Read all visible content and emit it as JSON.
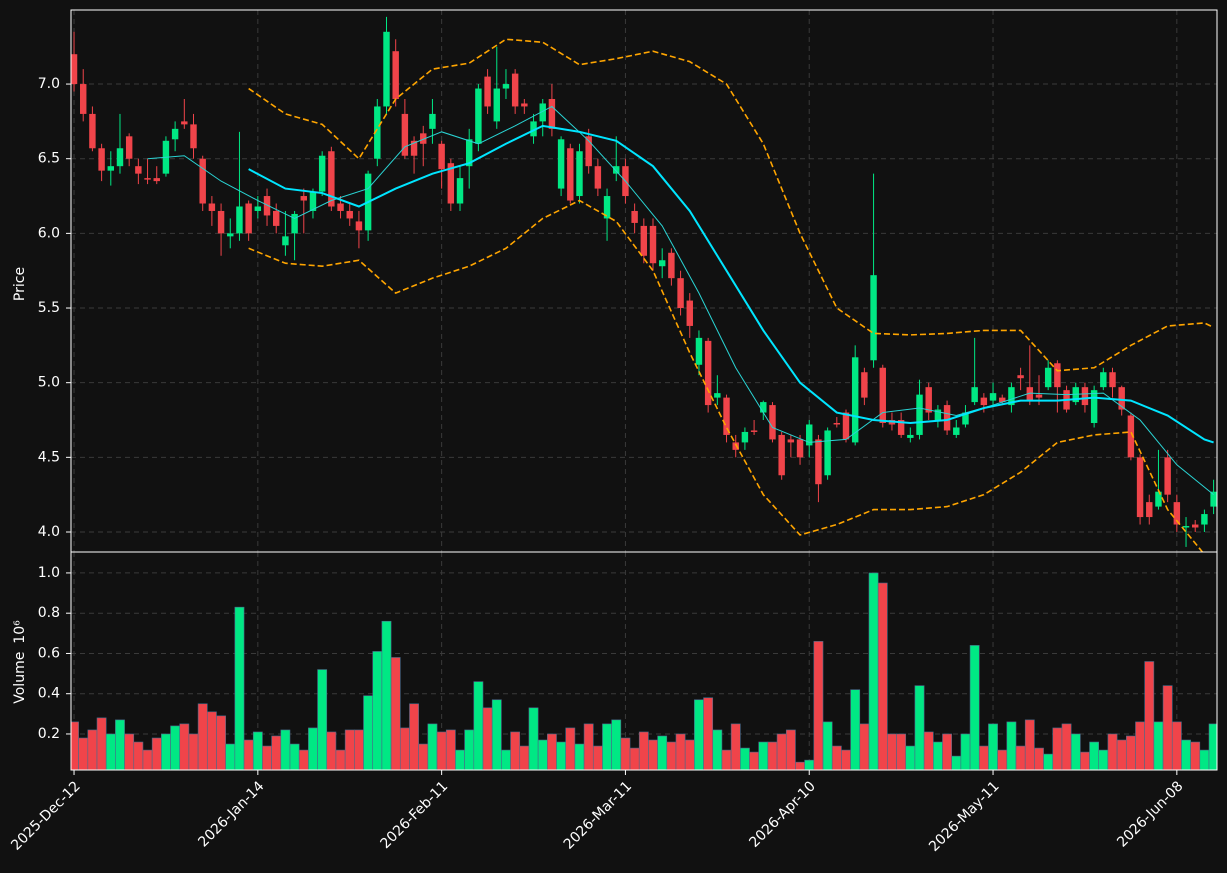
{
  "chart_data": [
    {
      "type": "candlestick",
      "ylabel": "Price",
      "up_color": "#00e884",
      "down_color": "#f0444a",
      "grid": true,
      "xlim": [
        -0.33,
        124.37
      ],
      "ylim": [
        3.866,
        7.496
      ],
      "yticks": [
        {
          "value": 4.0,
          "label": "4.0"
        },
        4.5,
        {
          "value": 5.0,
          "label": "5.0"
        },
        5.5,
        {
          "value": 6.0,
          "label": "6.0"
        },
        6.5,
        {
          "value": 7.0,
          "label": "7.0"
        }
      ],
      "open": [
        7.2,
        7.0,
        6.8,
        6.57,
        6.42,
        6.45,
        6.65,
        6.45,
        6.37,
        6.37,
        6.4,
        6.63,
        6.75,
        6.73,
        6.5,
        6.2,
        6.15,
        5.98,
        6.0,
        6.2,
        6.15,
        6.25,
        6.15,
        5.92,
        6.0,
        6.25,
        6.15,
        6.28,
        6.55,
        6.2,
        6.15,
        6.08,
        6.02,
        6.5,
        6.85,
        7.22,
        6.8,
        6.62,
        6.67,
        6.7,
        6.6,
        6.47,
        6.2,
        6.45,
        6.6,
        7.05,
        6.75,
        6.97,
        7.07,
        6.87,
        6.65,
        6.75,
        6.9,
        6.3,
        6.57,
        6.25,
        6.65,
        6.45,
        6.1,
        6.4,
        6.45,
        6.15,
        6.05,
        6.05,
        5.78,
        5.87,
        5.7,
        5.55,
        5.12,
        5.28,
        4.9,
        4.9,
        4.6,
        4.6,
        4.68,
        4.8,
        4.85,
        4.65,
        4.62,
        4.62,
        4.58,
        4.62,
        4.38,
        4.73,
        4.8,
        4.6,
        5.07,
        5.15,
        5.1,
        4.75,
        4.75,
        4.63,
        4.65,
        4.97,
        4.75,
        4.85,
        4.65,
        4.72,
        4.87,
        4.9,
        4.88,
        4.9,
        4.85,
        5.05,
        4.97,
        4.92,
        4.97,
        5.13,
        4.95,
        4.87,
        4.97,
        4.73,
        4.97,
        5.07,
        4.97,
        4.78,
        4.5,
        4.2,
        4.17,
        4.5,
        4.2,
        4.03,
        4.05,
        4.05,
        4.17
      ],
      "high": [
        7.35,
        7.1,
        6.85,
        6.6,
        6.55,
        6.8,
        6.67,
        6.5,
        6.5,
        6.45,
        6.65,
        6.75,
        6.9,
        6.8,
        6.52,
        6.25,
        6.2,
        6.1,
        6.68,
        6.22,
        6.25,
        6.3,
        6.2,
        6.15,
        6.15,
        6.3,
        6.3,
        6.55,
        6.58,
        6.25,
        6.2,
        6.15,
        6.42,
        6.9,
        7.45,
        7.3,
        6.9,
        6.65,
        6.72,
        6.9,
        6.62,
        6.5,
        6.45,
        6.7,
        7.0,
        7.1,
        7.25,
        7.1,
        7.1,
        6.9,
        6.8,
        6.9,
        7.0,
        6.65,
        6.6,
        6.6,
        6.7,
        6.5,
        6.3,
        6.65,
        6.5,
        6.2,
        6.1,
        6.1,
        5.9,
        5.9,
        5.75,
        5.6,
        5.35,
        5.3,
        5.05,
        4.92,
        4.65,
        4.7,
        4.75,
        4.88,
        4.87,
        4.67,
        4.65,
        4.65,
        4.75,
        4.65,
        4.7,
        4.77,
        4.82,
        5.25,
        5.1,
        6.4,
        5.12,
        4.8,
        4.8,
        4.7,
        5.02,
        5.0,
        4.85,
        4.88,
        4.75,
        4.85,
        5.3,
        4.93,
        5.0,
        4.92,
        5.0,
        5.1,
        5.25,
        5.05,
        5.15,
        5.15,
        4.98,
        5.0,
        5.0,
        4.98,
        5.1,
        5.1,
        4.98,
        4.8,
        4.52,
        4.25,
        4.55,
        4.55,
        4.25,
        4.1,
        4.08,
        4.15,
        4.35
      ],
      "low": [
        6.95,
        6.75,
        6.55,
        6.35,
        6.32,
        6.4,
        6.45,
        6.33,
        6.33,
        6.33,
        6.38,
        6.55,
        6.7,
        6.5,
        6.15,
        6.05,
        5.85,
        5.9,
        5.95,
        5.95,
        6.1,
        6.05,
        6.0,
        5.85,
        5.82,
        6.0,
        6.1,
        6.25,
        6.15,
        6.1,
        6.05,
        5.9,
        5.95,
        6.45,
        6.8,
        6.85,
        6.5,
        6.4,
        6.45,
        6.6,
        6.3,
        6.15,
        6.15,
        6.3,
        6.55,
        6.8,
        6.7,
        6.9,
        6.8,
        6.8,
        6.6,
        6.65,
        6.65,
        6.25,
        6.2,
        6.2,
        6.4,
        6.25,
        5.95,
        6.35,
        6.2,
        6.0,
        5.8,
        5.75,
        5.7,
        5.65,
        5.45,
        5.3,
        5.05,
        4.8,
        4.85,
        4.6,
        4.5,
        4.55,
        4.65,
        4.75,
        4.6,
        4.35,
        4.5,
        4.45,
        4.5,
        4.2,
        4.35,
        4.7,
        4.6,
        4.58,
        4.85,
        5.1,
        4.7,
        4.68,
        4.63,
        4.6,
        4.62,
        4.75,
        4.7,
        4.65,
        4.63,
        4.7,
        4.85,
        4.8,
        4.85,
        4.85,
        4.8,
        4.95,
        4.85,
        4.85,
        4.95,
        4.8,
        4.8,
        4.85,
        4.8,
        4.7,
        4.95,
        4.9,
        4.78,
        4.48,
        4.05,
        4.05,
        4.15,
        4.2,
        4.0,
        3.9,
        4.0,
        4.0,
        4.12
      ],
      "close": [
        7.0,
        6.8,
        6.57,
        6.42,
        6.45,
        6.57,
        6.5,
        6.4,
        6.36,
        6.35,
        6.62,
        6.7,
        6.73,
        6.57,
        6.2,
        6.15,
        6.0,
        6.0,
        6.18,
        6.0,
        6.18,
        6.12,
        6.05,
        5.98,
        6.13,
        6.22,
        6.28,
        6.52,
        6.18,
        6.15,
        6.1,
        6.02,
        6.4,
        6.85,
        7.35,
        6.9,
        6.52,
        6.52,
        6.6,
        6.8,
        6.43,
        6.2,
        6.37,
        6.63,
        6.97,
        6.85,
        6.97,
        7.0,
        6.85,
        6.85,
        6.75,
        6.87,
        6.7,
        6.63,
        6.22,
        6.55,
        6.45,
        6.3,
        6.25,
        6.45,
        6.25,
        6.07,
        5.85,
        5.8,
        5.82,
        5.7,
        5.5,
        5.38,
        5.3,
        4.85,
        4.93,
        4.65,
        4.55,
        4.67,
        4.67,
        4.87,
        4.62,
        4.38,
        4.6,
        4.5,
        4.72,
        4.32,
        4.68,
        4.72,
        4.62,
        5.17,
        4.9,
        5.72,
        4.73,
        4.72,
        4.65,
        4.65,
        4.92,
        4.8,
        4.82,
        4.68,
        4.7,
        4.8,
        4.97,
        4.85,
        4.93,
        4.87,
        4.97,
        5.03,
        4.88,
        4.9,
        5.1,
        4.97,
        4.82,
        4.97,
        4.85,
        4.95,
        5.07,
        4.97,
        4.82,
        4.5,
        4.1,
        4.1,
        4.27,
        4.25,
        4.05,
        4.04,
        4.03,
        4.12,
        4.27
      ],
      "series": [
        {
          "color": "#2ad4d4",
          "linewidth": 1,
          "linestyle": "solid",
          "x": [
            8,
            12,
            16,
            20,
            24,
            28,
            32,
            36,
            40,
            44,
            48,
            52,
            56,
            60,
            64,
            68,
            72,
            76,
            80,
            84,
            88,
            92,
            96,
            100,
            104,
            108,
            112,
            116,
            120,
            124
          ],
          "values": [
            6.5,
            6.52,
            6.35,
            6.22,
            6.1,
            6.22,
            6.3,
            6.58,
            6.68,
            6.6,
            6.72,
            6.85,
            6.62,
            6.35,
            6.05,
            5.6,
            5.1,
            4.7,
            4.6,
            4.62,
            4.8,
            4.83,
            4.78,
            4.85,
            4.93,
            4.92,
            4.93,
            4.75,
            4.45,
            4.25
          ]
        },
        {
          "color": "#00e5ff",
          "linewidth": 2,
          "linestyle": "solid",
          "x": [
            19,
            23,
            27,
            31,
            35,
            39,
            43,
            47,
            51,
            55,
            59,
            63,
            67,
            71,
            75,
            79,
            83,
            87,
            91,
            95,
            99,
            103,
            107,
            111,
            115,
            119,
            123,
            124
          ],
          "values": [
            6.43,
            6.3,
            6.27,
            6.18,
            6.3,
            6.4,
            6.47,
            6.6,
            6.72,
            6.68,
            6.62,
            6.45,
            6.15,
            5.75,
            5.35,
            5.0,
            4.8,
            4.75,
            4.73,
            4.75,
            4.83,
            4.88,
            4.88,
            4.9,
            4.88,
            4.78,
            4.62,
            4.6
          ]
        },
        {
          "color": "#ffa500",
          "linewidth": 1.6,
          "linestyle": "dashed",
          "x": [
            19,
            23,
            27,
            31,
            35,
            39,
            43,
            47,
            51,
            55,
            59,
            63,
            67,
            71,
            75,
            79,
            83,
            87,
            91,
            95,
            99,
            103,
            107,
            111,
            115,
            119,
            123,
            124
          ],
          "values": [
            6.97,
            6.8,
            6.73,
            6.5,
            6.9,
            7.1,
            7.14,
            7.3,
            7.28,
            7.13,
            7.17,
            7.22,
            7.15,
            7.0,
            6.6,
            6.0,
            5.5,
            5.33,
            5.32,
            5.33,
            5.35,
            5.35,
            5.08,
            5.1,
            5.25,
            5.38,
            5.4,
            5.37
          ]
        },
        {
          "color": "#ffa500",
          "linewidth": 1.6,
          "linestyle": "dashed",
          "x": [
            19,
            23,
            27,
            31,
            35,
            39,
            43,
            47,
            51,
            55,
            59,
            63,
            67,
            71,
            75,
            79,
            83,
            87,
            91,
            95,
            99,
            103,
            107,
            111,
            115,
            119,
            123,
            124
          ],
          "values": [
            5.9,
            5.8,
            5.78,
            5.82,
            5.6,
            5.7,
            5.78,
            5.9,
            6.1,
            6.22,
            6.08,
            5.75,
            5.2,
            4.7,
            4.25,
            3.98,
            4.05,
            4.15,
            4.15,
            4.17,
            4.25,
            4.4,
            4.6,
            4.65,
            4.67,
            4.15,
            3.85,
            3.8
          ]
        }
      ]
    },
    {
      "type": "bar",
      "ylabel": "Volume",
      "ylabel_scale": "10⁶",
      "grid": true,
      "xlim": [
        -0.33,
        124.37
      ],
      "ylim": [
        0.021,
        1.104
      ],
      "yticks": [
        0.2,
        0.4,
        0.6,
        0.8,
        {
          "value": 1.0,
          "label": "1.0"
        }
      ],
      "xticks": [
        {
          "value": 0,
          "label": "2025-Dec-12"
        },
        {
          "value": 20,
          "label": "2026-Jan-14"
        },
        {
          "value": 40,
          "label": "2026-Feb-11"
        },
        {
          "value": 60,
          "label": "2026-Mar-11"
        },
        {
          "value": 80,
          "label": "2026-Apr-10"
        },
        {
          "value": 100,
          "label": "2026-May-11"
        },
        {
          "value": 120,
          "label": "2026-Jun-08"
        }
      ],
      "values": [
        0.26,
        0.18,
        0.22,
        0.28,
        0.2,
        0.27,
        0.2,
        0.16,
        0.12,
        0.18,
        0.2,
        0.24,
        0.25,
        0.2,
        0.35,
        0.31,
        0.29,
        0.15,
        0.83,
        0.17,
        0.21,
        0.14,
        0.19,
        0.22,
        0.15,
        0.12,
        0.23,
        0.52,
        0.21,
        0.12,
        0.22,
        0.22,
        0.39,
        0.61,
        0.76,
        0.58,
        0.23,
        0.35,
        0.15,
        0.25,
        0.21,
        0.22,
        0.12,
        0.22,
        0.46,
        0.33,
        0.37,
        0.12,
        0.21,
        0.14,
        0.33,
        0.17,
        0.2,
        0.16,
        0.23,
        0.15,
        0.25,
        0.14,
        0.25,
        0.27,
        0.18,
        0.13,
        0.21,
        0.17,
        0.19,
        0.16,
        0.2,
        0.17,
        0.37,
        0.38,
        0.22,
        0.12,
        0.25,
        0.13,
        0.11,
        0.16,
        0.16,
        0.2,
        0.22,
        0.06,
        0.07,
        0.66,
        0.26,
        0.14,
        0.12,
        0.42,
        0.25,
        1.0,
        0.95,
        0.2,
        0.2,
        0.14,
        0.44,
        0.21,
        0.16,
        0.2,
        0.09,
        0.2,
        0.64,
        0.14,
        0.25,
        0.12,
        0.26,
        0.14,
        0.27,
        0.13,
        0.1,
        0.23,
        0.25,
        0.2,
        0.11,
        0.16,
        0.12,
        0.2,
        0.17,
        0.19,
        0.26,
        0.56,
        0.26,
        0.44,
        0.26,
        0.17,
        0.16,
        0.12,
        0.25
      ]
    }
  ]
}
